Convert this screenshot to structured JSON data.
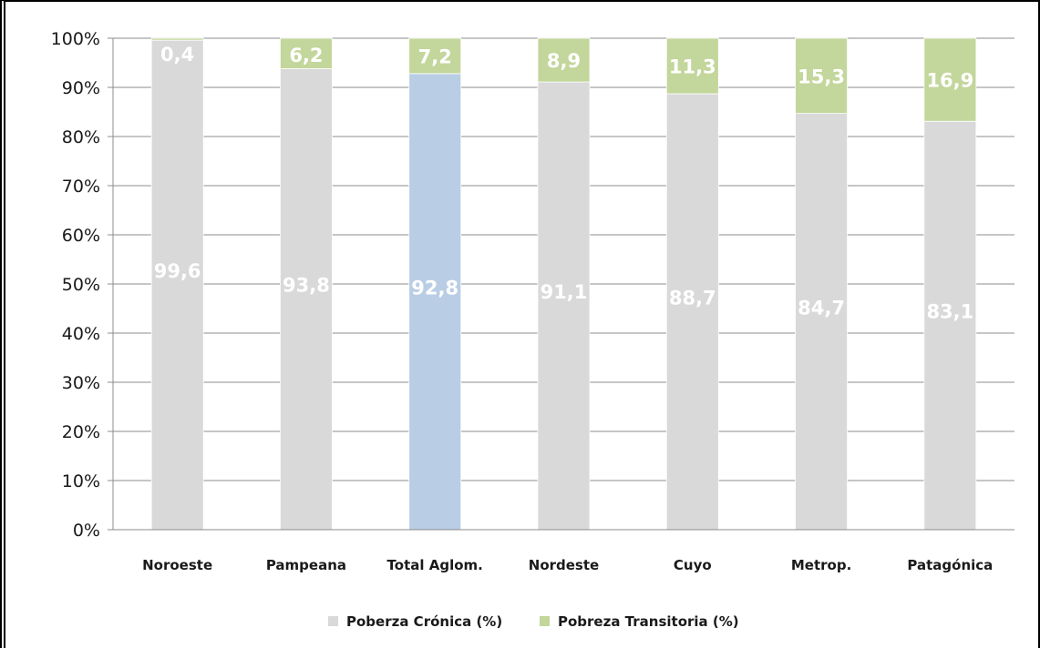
{
  "chart_data": {
    "type": "bar",
    "stacked": true,
    "percent_stacked": true,
    "title": "",
    "xlabel": "",
    "ylabel": "",
    "ylim": [
      0,
      100
    ],
    "yticks": [
      "0%",
      "10%",
      "20%",
      "30%",
      "40%",
      "50%",
      "60%",
      "70%",
      "80%",
      "90%",
      "100%"
    ],
    "grid": true,
    "legend_position": "bottom",
    "categories": [
      "Noroeste",
      "Pampeana",
      "Total Aglom.",
      "Nordeste",
      "Cuyo",
      "Metrop.",
      "Patagónica"
    ],
    "series": [
      {
        "name": "Poberza Crónica (%)",
        "values": [
          99.6,
          93.8,
          92.8,
          91.1,
          88.7,
          84.7,
          83.1
        ],
        "labels": [
          "99,6",
          "93,8",
          "92,8",
          "91,1",
          "88,7",
          "84,7",
          "83,1"
        ],
        "color": "#d9d9d9"
      },
      {
        "name": "Pobreza Transitoria (%)",
        "values": [
          0.4,
          6.2,
          7.2,
          8.9,
          11.3,
          15.3,
          16.9
        ],
        "labels": [
          "0,4",
          "6,2",
          "7,2",
          "8,9",
          "11,3",
          "15,3",
          "16,9"
        ],
        "color": "#c3d69b"
      }
    ],
    "highlight": {
      "category": "Total Aglom.",
      "series": "Poberza Crónica (%)",
      "color": "#b9cde5"
    }
  }
}
